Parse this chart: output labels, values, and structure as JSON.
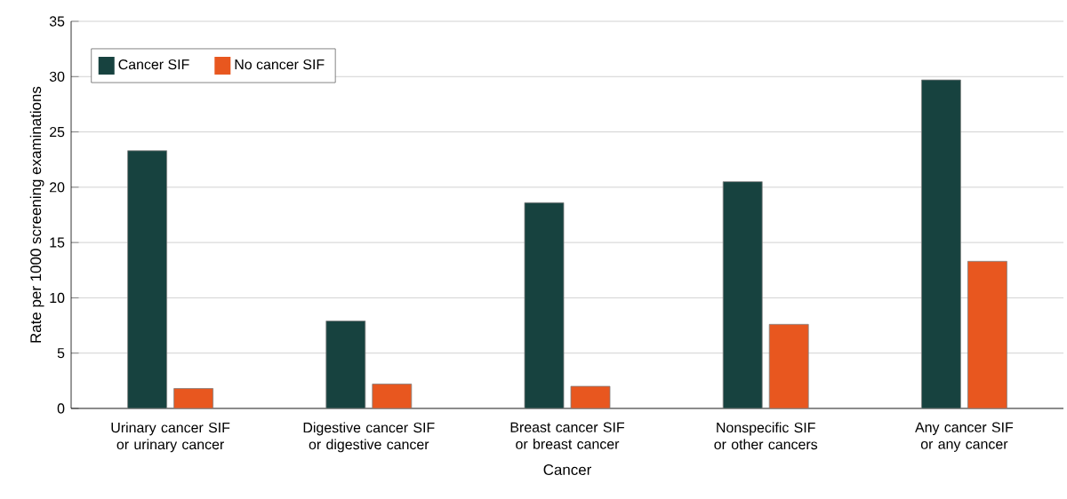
{
  "chart_data": {
    "type": "bar",
    "xlabel": "Cancer",
    "ylabel": "Rate per 1000 screening examinations",
    "categories": [
      "Urinary cancer SIF or urinary cancer",
      "Digestive cancer SIF or digestive cancer",
      "Breast cancer SIF or breast cancer",
      "Nonspecific SIF or other cancers",
      "Any cancer SIF or any cancer"
    ],
    "series": [
      {
        "name": "Cancer SIF",
        "color": "#17423f",
        "values": [
          23.3,
          7.9,
          18.6,
          20.5,
          29.7
        ]
      },
      {
        "name": "No cancer SIF",
        "color": "#e8571f",
        "values": [
          1.8,
          2.2,
          2.0,
          7.6,
          13.3
        ]
      }
    ],
    "ylim": [
      0,
      35
    ],
    "yticks": [
      0,
      5,
      10,
      15,
      20,
      25,
      30,
      35
    ],
    "grid": "y",
    "legend": "top left"
  }
}
